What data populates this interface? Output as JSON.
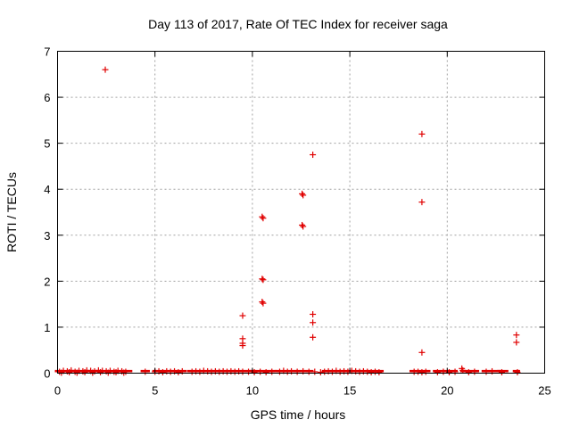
{
  "chart_data": {
    "type": "scatter",
    "title": "Day 113 of 2017, Rate Of TEC Index for receiver saga",
    "xlabel": "GPS time / hours",
    "ylabel": "ROTI / TECUs",
    "xlim": [
      0,
      25
    ],
    "ylim": [
      0,
      7
    ],
    "xticks": [
      "0",
      "5",
      "10",
      "15",
      "20",
      "25"
    ],
    "yticks": [
      "0",
      "1",
      "2",
      "3",
      "4",
      "5",
      "6",
      "7"
    ],
    "grid": true,
    "marker": "+",
    "color": "#e00000",
    "points": [
      [
        2.45,
        6.6
      ],
      [
        9.5,
        1.25
      ],
      [
        9.5,
        0.75
      ],
      [
        9.5,
        0.65
      ],
      [
        9.5,
        0.6
      ],
      [
        10.5,
        3.4
      ],
      [
        10.55,
        3.37
      ],
      [
        10.5,
        2.05
      ],
      [
        10.55,
        2.03
      ],
      [
        10.5,
        1.55
      ],
      [
        10.55,
        1.52
      ],
      [
        12.55,
        3.9
      ],
      [
        12.6,
        3.87
      ],
      [
        12.55,
        3.22
      ],
      [
        12.6,
        3.19
      ],
      [
        13.1,
        4.75
      ],
      [
        13.1,
        1.28
      ],
      [
        13.1,
        1.1
      ],
      [
        13.1,
        0.78
      ],
      [
        18.7,
        5.2
      ],
      [
        18.7,
        3.72
      ],
      [
        18.7,
        0.45
      ],
      [
        23.55,
        0.83
      ],
      [
        23.55,
        0.67
      ],
      [
        20.75,
        0.1
      ],
      [
        20.8,
        0.06
      ],
      [
        22.3,
        0.04
      ],
      [
        0.1,
        0.03
      ],
      [
        0.3,
        0.05
      ],
      [
        0.5,
        0.04
      ],
      [
        0.7,
        0.06
      ],
      [
        0.9,
        0.03
      ],
      [
        1.1,
        0.05
      ],
      [
        1.3,
        0.04
      ],
      [
        1.5,
        0.06
      ],
      [
        1.7,
        0.05
      ],
      [
        1.9,
        0.04
      ],
      [
        2.1,
        0.06
      ],
      [
        2.3,
        0.05
      ],
      [
        2.5,
        0.04
      ],
      [
        2.7,
        0.05
      ],
      [
        2.9,
        0.03
      ],
      [
        3.1,
        0.05
      ],
      [
        3.3,
        0.04
      ],
      [
        3.5,
        0.03
      ],
      [
        0.2,
        0.01
      ],
      [
        0.6,
        0.02
      ],
      [
        1.0,
        0.01
      ],
      [
        1.4,
        0.02
      ],
      [
        1.8,
        0.01
      ],
      [
        2.2,
        0.02
      ],
      [
        2.6,
        0.01
      ],
      [
        3.0,
        0.02
      ],
      [
        3.4,
        0.01
      ],
      [
        4.5,
        0.03
      ],
      [
        5.0,
        0.03
      ],
      [
        5.2,
        0.04
      ],
      [
        5.4,
        0.02
      ],
      [
        5.6,
        0.04
      ],
      [
        5.8,
        0.03
      ],
      [
        6.0,
        0.04
      ],
      [
        6.2,
        0.02
      ],
      [
        6.4,
        0.04
      ],
      [
        6.9,
        0.03
      ],
      [
        7.1,
        0.04
      ],
      [
        7.3,
        0.03
      ],
      [
        7.5,
        0.05
      ],
      [
        7.7,
        0.04
      ],
      [
        7.9,
        0.03
      ],
      [
        8.1,
        0.04
      ],
      [
        8.3,
        0.03
      ],
      [
        8.5,
        0.04
      ],
      [
        8.7,
        0.03
      ],
      [
        8.9,
        0.04
      ],
      [
        9.1,
        0.03
      ],
      [
        9.3,
        0.04
      ],
      [
        9.5,
        0.03
      ],
      [
        9.8,
        0.03
      ],
      [
        10.1,
        0.02
      ],
      [
        10.4,
        0.03
      ],
      [
        10.7,
        0.02
      ],
      [
        11.0,
        0.03
      ],
      [
        11.4,
        0.03
      ],
      [
        11.6,
        0.05
      ],
      [
        11.8,
        0.03
      ],
      [
        12.0,
        0.04
      ],
      [
        12.3,
        0.03
      ],
      [
        12.6,
        0.04
      ],
      [
        12.9,
        0.03
      ],
      [
        13.2,
        0.03
      ],
      [
        13.5,
        0.02
      ],
      [
        13.7,
        0.03
      ],
      [
        13.9,
        0.04
      ],
      [
        14.1,
        0.03
      ],
      [
        14.3,
        0.05
      ],
      [
        14.5,
        0.03
      ],
      [
        14.7,
        0.04
      ],
      [
        14.9,
        0.03
      ],
      [
        15.1,
        0.05
      ],
      [
        15.3,
        0.04
      ],
      [
        15.5,
        0.03
      ],
      [
        15.7,
        0.04
      ],
      [
        15.9,
        0.03
      ],
      [
        16.1,
        0.02
      ],
      [
        16.3,
        0.03
      ],
      [
        16.5,
        0.02
      ],
      [
        18.3,
        0.03
      ],
      [
        18.5,
        0.03
      ],
      [
        18.7,
        0.02
      ],
      [
        18.9,
        0.03
      ],
      [
        19.5,
        0.02
      ],
      [
        19.8,
        0.03
      ],
      [
        20.1,
        0.02
      ],
      [
        20.4,
        0.03
      ],
      [
        21.1,
        0.02
      ],
      [
        21.4,
        0.03
      ],
      [
        22.0,
        0.03
      ],
      [
        22.8,
        0.02
      ],
      [
        23.6,
        0.02
      ]
    ],
    "segments": [
      [
        0.0,
        3.7
      ],
      [
        4.4,
        4.6
      ],
      [
        5.0,
        6.5
      ],
      [
        6.8,
        9.9
      ],
      [
        10.0,
        11.1
      ],
      [
        11.3,
        13.0
      ],
      [
        13.7,
        16.6
      ],
      [
        18.2,
        19.0
      ],
      [
        19.4,
        20.4
      ],
      [
        20.8,
        21.5
      ],
      [
        21.9,
        22.6
      ],
      [
        22.7,
        23.0
      ],
      [
        23.5,
        23.6
      ]
    ]
  }
}
